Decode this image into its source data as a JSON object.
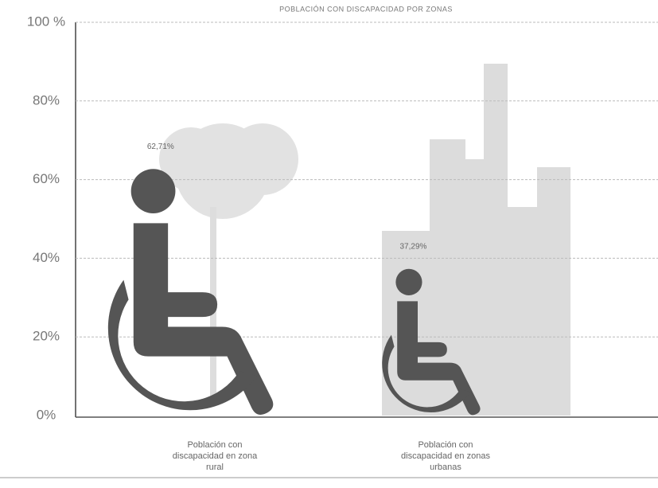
{
  "chart_data": {
    "type": "pictogram",
    "title": "POBLACIÓN CON DISCAPACIDAD POR ZONAS",
    "categories": [
      "Población con discapacidad en zona rural",
      "Población con discapacidad en zonas urbanas"
    ],
    "values": [
      62.71,
      37.29
    ],
    "value_labels": [
      "62,71%",
      "37,29%"
    ],
    "color": "#555555",
    "ylim": [
      0,
      100
    ],
    "yticks": [
      {
        "value": 0,
        "label": "0%"
      },
      {
        "value": 20,
        "label": "20%"
      },
      {
        "value": 40,
        "label": "40%"
      },
      {
        "value": 60,
        "label": "60%"
      },
      {
        "value": 80,
        "label": "80%"
      },
      {
        "value": 100,
        "label": "100 %"
      }
    ],
    "grid": true
  }
}
